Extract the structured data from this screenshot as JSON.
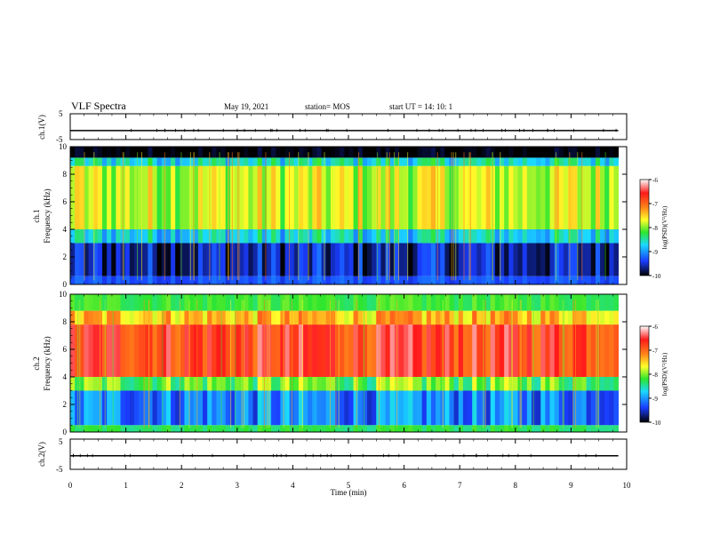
{
  "header": {
    "title": "VLF Spectra",
    "date": "May 19, 2021",
    "station": "station= MOS",
    "start": "start  UT =   14: 10: 1"
  },
  "colors": {
    "scale": [
      "#ffffff",
      "#ff1a1a",
      "#ff8c1a",
      "#ffff2a",
      "#2ee62e",
      "#1ad9ff",
      "#1a3cff",
      "#000000"
    ],
    "line": "#000000"
  },
  "chart_data": [
    {
      "type": "line",
      "name": "ch1-waveform",
      "ylabel": "ch.1(V)",
      "ylim": [
        -5,
        5
      ],
      "yticks": [
        "5",
        "-5"
      ],
      "x": [
        0,
        9.85
      ],
      "y": [
        -1.5,
        -1.5
      ]
    },
    {
      "type": "heatmap",
      "name": "ch1-spectrogram",
      "ylabel": "ch.1\nFrequency (kHz)",
      "ylim": [
        0,
        10
      ],
      "yticks": [
        "0",
        "2",
        "4",
        "6",
        "8",
        "10"
      ],
      "xlim": [
        0,
        10
      ],
      "data_end_min": 9.85,
      "bands": [
        {
          "from": 0,
          "to": 0.6,
          "level": -9.3
        },
        {
          "from": 0.6,
          "to": 3.0,
          "level": -9.6
        },
        {
          "from": 3.0,
          "to": 4.0,
          "level": -8.7
        },
        {
          "from": 4.0,
          "to": 8.6,
          "level": -7.8
        },
        {
          "from": 8.6,
          "to": 9.2,
          "level": -8.6
        },
        {
          "from": 9.2,
          "to": 10,
          "level": -10
        }
      ],
      "colorbar": {
        "label": "log(PSD)(V²/Hz)",
        "min": -10,
        "max": -6,
        "ticks": [
          "-6",
          "-7",
          "-8",
          "-9",
          "-10"
        ]
      }
    },
    {
      "type": "heatmap",
      "name": "ch2-spectrogram",
      "ylabel": "ch.2\nFrequency (kHz)",
      "ylim": [
        0,
        10
      ],
      "yticks": [
        "0",
        "2",
        "4",
        "6",
        "8",
        "10"
      ],
      "xlim": [
        0,
        10
      ],
      "data_end_min": 9.85,
      "bands": [
        {
          "from": 0,
          "to": 0.5,
          "level": -8.3
        },
        {
          "from": 0.5,
          "to": 3.0,
          "level": -9.1
        },
        {
          "from": 3.0,
          "to": 4.0,
          "level": -8.1
        },
        {
          "from": 4.0,
          "to": 7.8,
          "level": -6.7
        },
        {
          "from": 7.8,
          "to": 8.8,
          "level": -7.4
        },
        {
          "from": 8.8,
          "to": 10,
          "level": -8.2
        }
      ],
      "colorbar": {
        "label": "log(PSD)(V²/Hz)",
        "min": -10,
        "max": -6,
        "ticks": [
          "-6",
          "-7",
          "-8",
          "-9",
          "-10"
        ]
      }
    },
    {
      "type": "line",
      "name": "ch2-waveform",
      "ylabel": "ch.2(V)",
      "ylim": [
        -5,
        5
      ],
      "yticks": [
        "5",
        "-5"
      ],
      "x": [
        0,
        9.85
      ],
      "y": [
        -0.5,
        -0.5
      ]
    }
  ],
  "xaxis": {
    "label": "Time (min)",
    "ticks": [
      "0",
      "1",
      "2",
      "3",
      "4",
      "5",
      "6",
      "7",
      "8",
      "9",
      "10"
    ],
    "xlim": [
      0,
      10
    ]
  }
}
